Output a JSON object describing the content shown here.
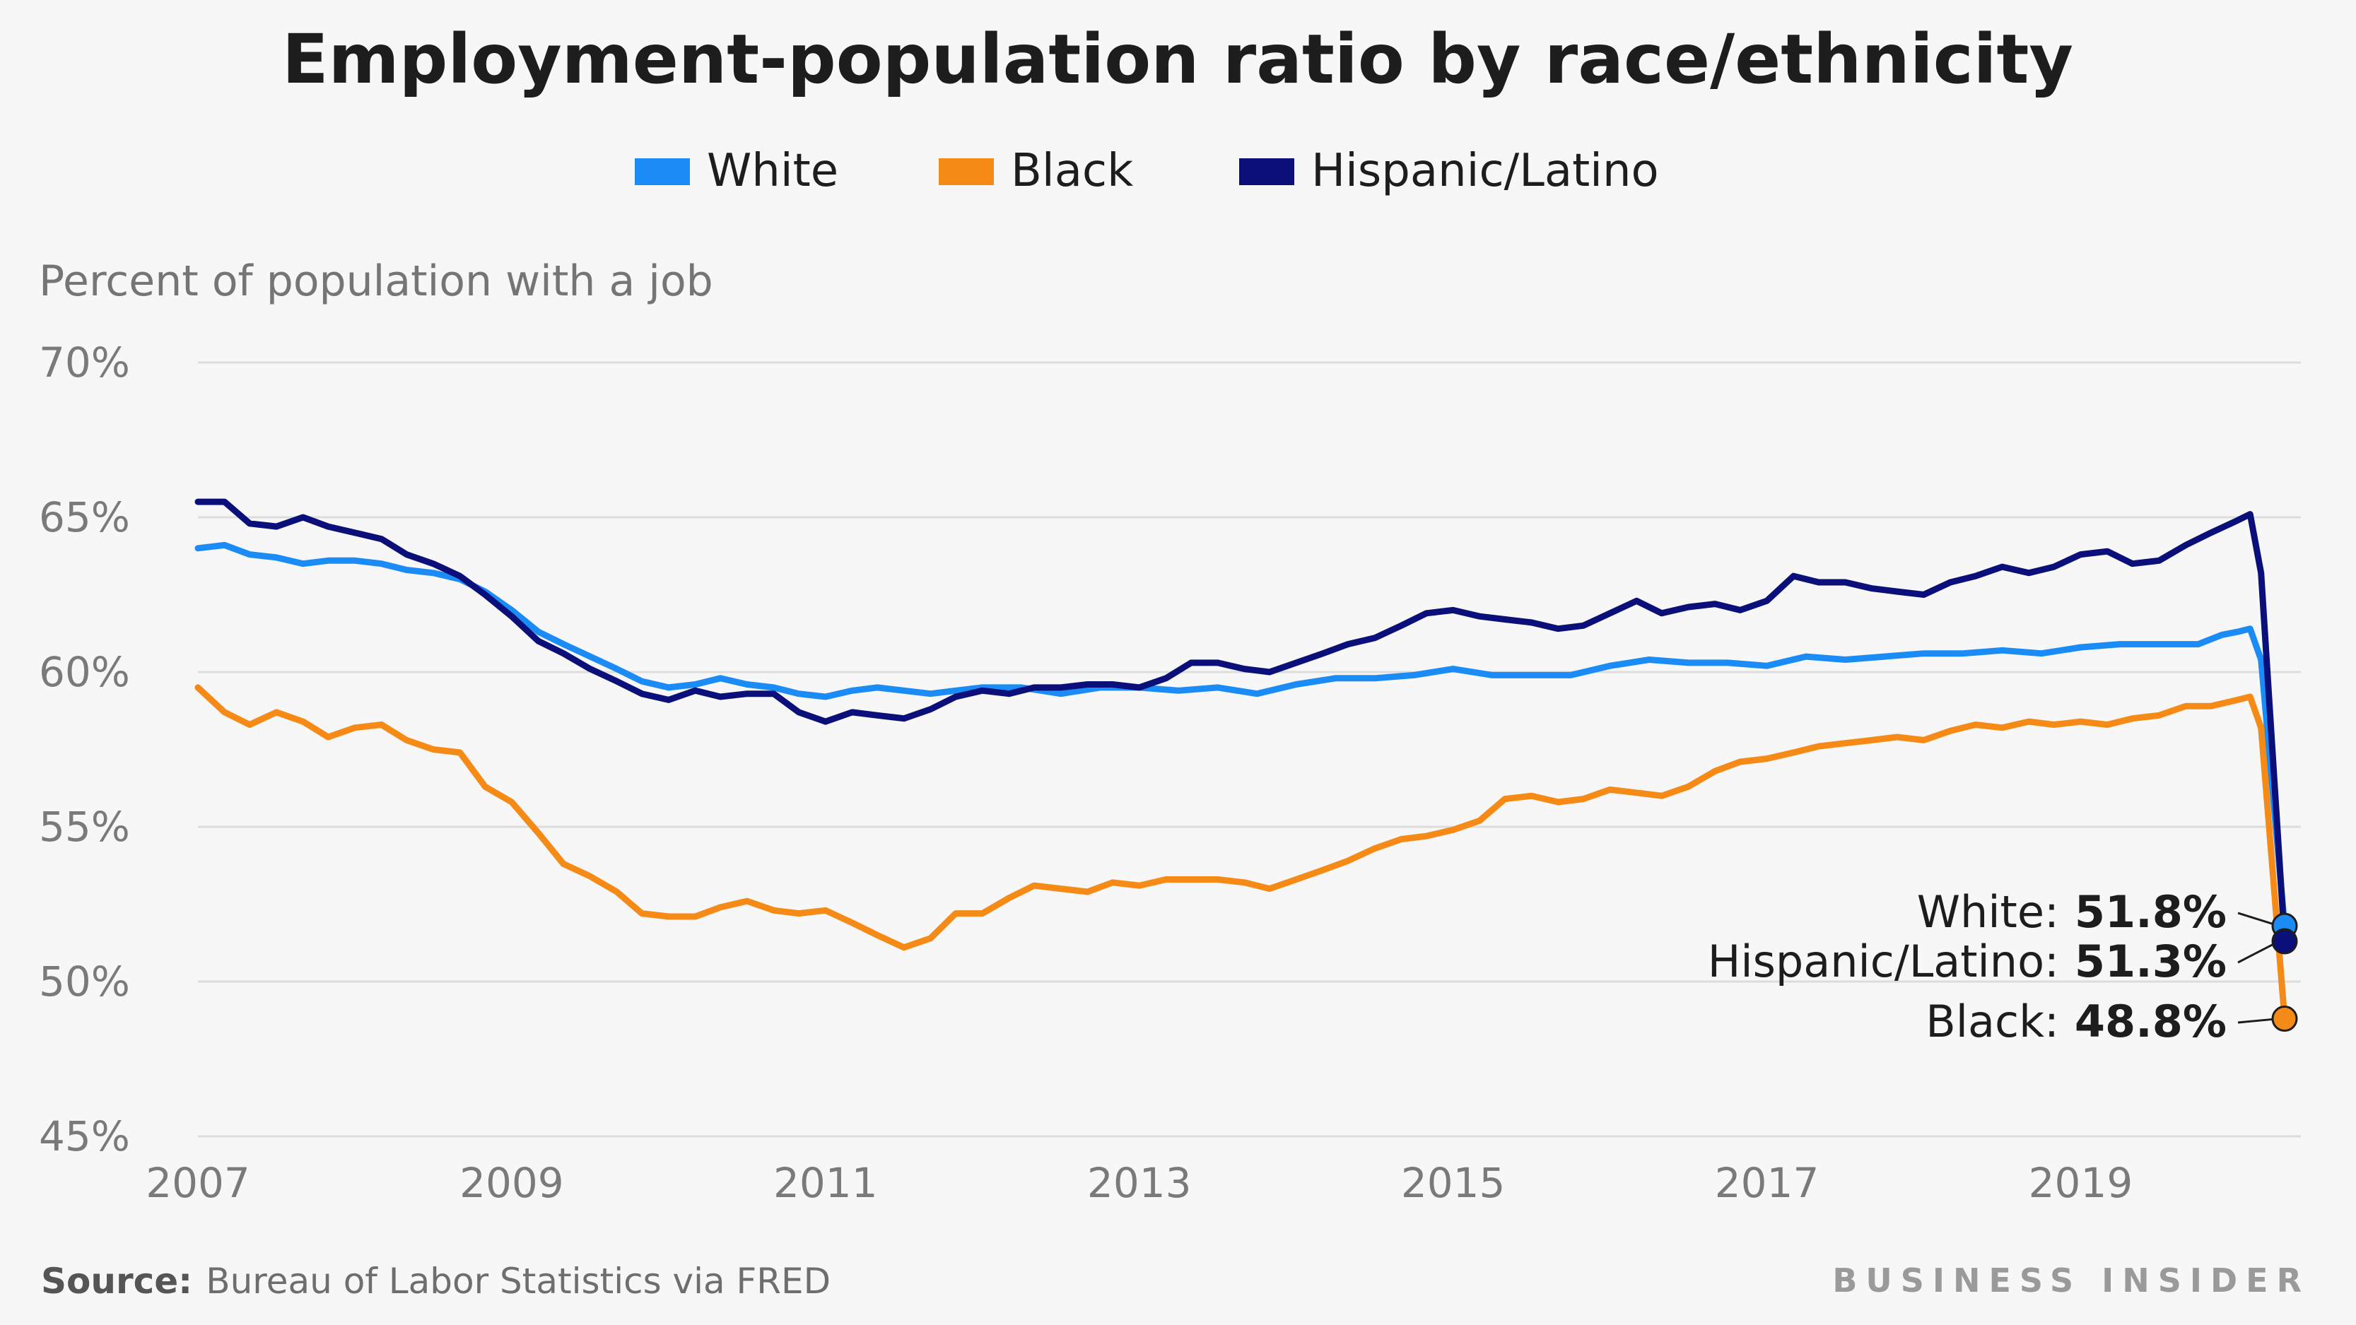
{
  "chart_data": {
    "type": "line",
    "title": "Employment-population ratio by race/ethnicity",
    "ylabel": "Percent of population with a job",
    "xlabel": "",
    "ylim": [
      45,
      70
    ],
    "yticks": [
      70,
      65,
      60,
      55,
      50,
      45
    ],
    "ytick_labels": [
      "70%",
      "65%",
      "60%",
      "55%",
      "50%",
      "45%"
    ],
    "xlim": [
      2007,
      2020.3
    ],
    "xticks": [
      2007,
      2009,
      2011,
      2013,
      2015,
      2017,
      2019
    ],
    "xtick_labels": [
      "2007",
      "2009",
      "2011",
      "2013",
      "2015",
      "2017",
      "2019"
    ],
    "legend_position": "top-center",
    "grid": true,
    "series": [
      {
        "name": "White",
        "color": "#1b8cf5",
        "end_label": "White:",
        "end_value": "51.8%",
        "points": [
          [
            2007.0,
            64.0
          ],
          [
            2007.17,
            64.1
          ],
          [
            2007.33,
            63.8
          ],
          [
            2007.5,
            63.7
          ],
          [
            2007.67,
            63.5
          ],
          [
            2007.83,
            63.6
          ],
          [
            2008.0,
            63.6
          ],
          [
            2008.17,
            63.5
          ],
          [
            2008.33,
            63.3
          ],
          [
            2008.5,
            63.2
          ],
          [
            2008.67,
            63.0
          ],
          [
            2008.83,
            62.6
          ],
          [
            2009.0,
            62.0
          ],
          [
            2009.17,
            61.3
          ],
          [
            2009.33,
            60.9
          ],
          [
            2009.5,
            60.5
          ],
          [
            2009.67,
            60.1
          ],
          [
            2009.83,
            59.7
          ],
          [
            2010.0,
            59.5
          ],
          [
            2010.17,
            59.6
          ],
          [
            2010.33,
            59.8
          ],
          [
            2010.5,
            59.6
          ],
          [
            2010.67,
            59.5
          ],
          [
            2010.83,
            59.3
          ],
          [
            2011.0,
            59.2
          ],
          [
            2011.17,
            59.4
          ],
          [
            2011.33,
            59.5
          ],
          [
            2011.5,
            59.4
          ],
          [
            2011.67,
            59.3
          ],
          [
            2011.83,
            59.4
          ],
          [
            2012.0,
            59.5
          ],
          [
            2012.25,
            59.5
          ],
          [
            2012.5,
            59.3
          ],
          [
            2012.75,
            59.5
          ],
          [
            2013.0,
            59.5
          ],
          [
            2013.25,
            59.4
          ],
          [
            2013.5,
            59.5
          ],
          [
            2013.75,
            59.3
          ],
          [
            2014.0,
            59.6
          ],
          [
            2014.25,
            59.8
          ],
          [
            2014.5,
            59.8
          ],
          [
            2014.75,
            59.9
          ],
          [
            2015.0,
            60.1
          ],
          [
            2015.25,
            59.9
          ],
          [
            2015.5,
            59.9
          ],
          [
            2015.75,
            59.9
          ],
          [
            2016.0,
            60.2
          ],
          [
            2016.25,
            60.4
          ],
          [
            2016.5,
            60.3
          ],
          [
            2016.75,
            60.3
          ],
          [
            2017.0,
            60.2
          ],
          [
            2017.25,
            60.5
          ],
          [
            2017.5,
            60.4
          ],
          [
            2017.75,
            60.5
          ],
          [
            2018.0,
            60.6
          ],
          [
            2018.25,
            60.6
          ],
          [
            2018.5,
            60.7
          ],
          [
            2018.75,
            60.6
          ],
          [
            2019.0,
            60.8
          ],
          [
            2019.25,
            60.9
          ],
          [
            2019.5,
            60.9
          ],
          [
            2019.75,
            60.9
          ],
          [
            2019.9,
            61.2
          ],
          [
            2020.0,
            61.3
          ],
          [
            2020.08,
            61.4
          ],
          [
            2020.15,
            60.4
          ],
          [
            2020.3,
            51.8
          ]
        ]
      },
      {
        "name": "Black",
        "color": "#f58a16",
        "end_label": "Black:",
        "end_value": "48.8%",
        "points": [
          [
            2007.0,
            59.5
          ],
          [
            2007.17,
            58.7
          ],
          [
            2007.33,
            58.3
          ],
          [
            2007.5,
            58.7
          ],
          [
            2007.67,
            58.4
          ],
          [
            2007.83,
            57.9
          ],
          [
            2008.0,
            58.2
          ],
          [
            2008.17,
            58.3
          ],
          [
            2008.33,
            57.8
          ],
          [
            2008.5,
            57.5
          ],
          [
            2008.67,
            57.4
          ],
          [
            2008.83,
            56.3
          ],
          [
            2009.0,
            55.8
          ],
          [
            2009.17,
            54.8
          ],
          [
            2009.33,
            53.8
          ],
          [
            2009.5,
            53.4
          ],
          [
            2009.67,
            52.9
          ],
          [
            2009.83,
            52.2
          ],
          [
            2010.0,
            52.1
          ],
          [
            2010.17,
            52.1
          ],
          [
            2010.33,
            52.4
          ],
          [
            2010.5,
            52.6
          ],
          [
            2010.67,
            52.3
          ],
          [
            2010.83,
            52.2
          ],
          [
            2011.0,
            52.3
          ],
          [
            2011.17,
            51.9
          ],
          [
            2011.33,
            51.5
          ],
          [
            2011.5,
            51.1
          ],
          [
            2011.67,
            51.4
          ],
          [
            2011.83,
            52.2
          ],
          [
            2012.0,
            52.2
          ],
          [
            2012.17,
            52.7
          ],
          [
            2012.33,
            53.1
          ],
          [
            2012.5,
            53.0
          ],
          [
            2012.67,
            52.9
          ],
          [
            2012.83,
            53.2
          ],
          [
            2013.0,
            53.1
          ],
          [
            2013.17,
            53.3
          ],
          [
            2013.33,
            53.3
          ],
          [
            2013.5,
            53.3
          ],
          [
            2013.67,
            53.2
          ],
          [
            2013.83,
            53.0
          ],
          [
            2014.0,
            53.3
          ],
          [
            2014.17,
            53.6
          ],
          [
            2014.33,
            53.9
          ],
          [
            2014.5,
            54.3
          ],
          [
            2014.67,
            54.6
          ],
          [
            2014.83,
            54.7
          ],
          [
            2015.0,
            54.9
          ],
          [
            2015.17,
            55.2
          ],
          [
            2015.33,
            55.9
          ],
          [
            2015.5,
            56.0
          ],
          [
            2015.67,
            55.8
          ],
          [
            2015.83,
            55.9
          ],
          [
            2016.0,
            56.2
          ],
          [
            2016.17,
            56.1
          ],
          [
            2016.33,
            56.0
          ],
          [
            2016.5,
            56.3
          ],
          [
            2016.67,
            56.8
          ],
          [
            2016.83,
            57.1
          ],
          [
            2017.0,
            57.2
          ],
          [
            2017.17,
            57.4
          ],
          [
            2017.33,
            57.6
          ],
          [
            2017.5,
            57.7
          ],
          [
            2017.67,
            57.8
          ],
          [
            2017.83,
            57.9
          ],
          [
            2018.0,
            57.8
          ],
          [
            2018.17,
            58.1
          ],
          [
            2018.33,
            58.3
          ],
          [
            2018.5,
            58.2
          ],
          [
            2018.67,
            58.4
          ],
          [
            2018.83,
            58.3
          ],
          [
            2019.0,
            58.4
          ],
          [
            2019.17,
            58.3
          ],
          [
            2019.33,
            58.5
          ],
          [
            2019.5,
            58.6
          ],
          [
            2019.67,
            58.9
          ],
          [
            2019.83,
            58.9
          ],
          [
            2020.0,
            59.1
          ],
          [
            2020.08,
            59.2
          ],
          [
            2020.15,
            58.2
          ],
          [
            2020.3,
            48.8
          ]
        ]
      },
      {
        "name": "Hispanic/Latino",
        "color": "#0b0f7a",
        "end_label": "Hispanic/Latino:",
        "end_value": "51.3%",
        "points": [
          [
            2007.0,
            65.5
          ],
          [
            2007.17,
            65.5
          ],
          [
            2007.33,
            64.8
          ],
          [
            2007.5,
            64.7
          ],
          [
            2007.67,
            65.0
          ],
          [
            2007.83,
            64.7
          ],
          [
            2008.0,
            64.5
          ],
          [
            2008.17,
            64.3
          ],
          [
            2008.33,
            63.8
          ],
          [
            2008.5,
            63.5
          ],
          [
            2008.67,
            63.1
          ],
          [
            2008.83,
            62.5
          ],
          [
            2009.0,
            61.8
          ],
          [
            2009.17,
            61.0
          ],
          [
            2009.33,
            60.6
          ],
          [
            2009.5,
            60.1
          ],
          [
            2009.67,
            59.7
          ],
          [
            2009.83,
            59.3
          ],
          [
            2010.0,
            59.1
          ],
          [
            2010.17,
            59.4
          ],
          [
            2010.33,
            59.2
          ],
          [
            2010.5,
            59.3
          ],
          [
            2010.67,
            59.3
          ],
          [
            2010.83,
            58.7
          ],
          [
            2011.0,
            58.4
          ],
          [
            2011.17,
            58.7
          ],
          [
            2011.33,
            58.6
          ],
          [
            2011.5,
            58.5
          ],
          [
            2011.67,
            58.8
          ],
          [
            2011.83,
            59.2
          ],
          [
            2012.0,
            59.4
          ],
          [
            2012.17,
            59.3
          ],
          [
            2012.33,
            59.5
          ],
          [
            2012.5,
            59.5
          ],
          [
            2012.67,
            59.6
          ],
          [
            2012.83,
            59.6
          ],
          [
            2013.0,
            59.5
          ],
          [
            2013.17,
            59.8
          ],
          [
            2013.33,
            60.3
          ],
          [
            2013.5,
            60.3
          ],
          [
            2013.67,
            60.1
          ],
          [
            2013.83,
            60.0
          ],
          [
            2014.0,
            60.3
          ],
          [
            2014.17,
            60.6
          ],
          [
            2014.33,
            60.9
          ],
          [
            2014.5,
            61.1
          ],
          [
            2014.67,
            61.5
          ],
          [
            2014.83,
            61.9
          ],
          [
            2015.0,
            62.0
          ],
          [
            2015.17,
            61.8
          ],
          [
            2015.33,
            61.7
          ],
          [
            2015.5,
            61.6
          ],
          [
            2015.67,
            61.4
          ],
          [
            2015.83,
            61.5
          ],
          [
            2016.0,
            61.9
          ],
          [
            2016.17,
            62.3
          ],
          [
            2016.33,
            61.9
          ],
          [
            2016.5,
            62.1
          ],
          [
            2016.67,
            62.2
          ],
          [
            2016.83,
            62.0
          ],
          [
            2017.0,
            62.3
          ],
          [
            2017.17,
            63.1
          ],
          [
            2017.33,
            62.9
          ],
          [
            2017.5,
            62.9
          ],
          [
            2017.67,
            62.7
          ],
          [
            2017.83,
            62.6
          ],
          [
            2018.0,
            62.5
          ],
          [
            2018.17,
            62.9
          ],
          [
            2018.33,
            63.1
          ],
          [
            2018.5,
            63.4
          ],
          [
            2018.67,
            63.2
          ],
          [
            2018.83,
            63.4
          ],
          [
            2019.0,
            63.8
          ],
          [
            2019.17,
            63.9
          ],
          [
            2019.33,
            63.5
          ],
          [
            2019.5,
            63.6
          ],
          [
            2019.67,
            64.1
          ],
          [
            2019.83,
            64.5
          ],
          [
            2020.0,
            64.9
          ],
          [
            2020.08,
            65.1
          ],
          [
            2020.15,
            63.2
          ],
          [
            2020.3,
            51.3
          ]
        ]
      }
    ],
    "source_key": "Source:",
    "source_text": "Bureau of Labor Statistics via FRED",
    "brand": "BUSINESS INSIDER"
  }
}
